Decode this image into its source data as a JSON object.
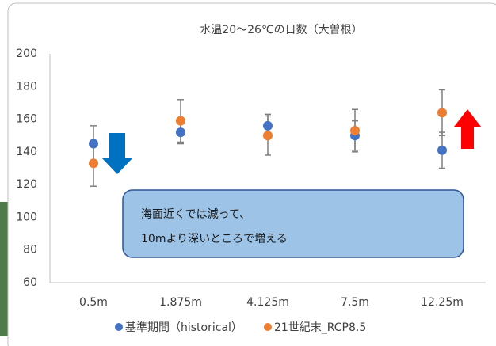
{
  "chart_data": {
    "type": "errorbar-scatter",
    "title": "水温20～26℃の日数（大曽根）",
    "categories": [
      "0.5m",
      "1.875m",
      "4.125m",
      "7.5m",
      "12.25m"
    ],
    "series": [
      {
        "name": "基準期間（historical）",
        "color": "#4472c4",
        "values": [
          145,
          152,
          156,
          150,
          141
        ],
        "errors": [
          11,
          7,
          7,
          9,
          11
        ]
      },
      {
        "name": "21世紀末_RCP8.5",
        "color": "#ed7d31",
        "values": [
          133,
          159,
          150,
          153,
          164
        ],
        "errors": [
          14,
          13,
          12,
          13,
          14
        ]
      }
    ],
    "ylim": [
      60,
      200
    ],
    "yticks": [
      60,
      80,
      100,
      120,
      140,
      160,
      180,
      200
    ],
    "grid": false,
    "legend": "bottom",
    "annotation": [
      "海面近くでは減って、",
      "10mより深いところで増える"
    ]
  }
}
